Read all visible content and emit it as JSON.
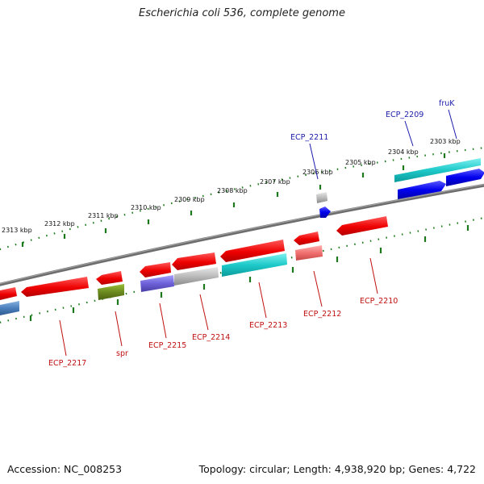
{
  "title": "Escherichia coli 536, complete genome",
  "footer": {
    "accession": "Accession: NC_008253",
    "topology": "Topology: circular; Length: 4,938,920 bp; Genes: 4,722"
  },
  "colors": {
    "backbone": "#7a7a7a",
    "tick": "#1c7a1c",
    "label_top": "#1c1caa",
    "label_bottom": "#c01010"
  },
  "kbp_labels": [
    "2303 kbp",
    "2304 kbp",
    "2305 kbp",
    "2306 kbp",
    "2307 kbp",
    "2308 kbp",
    "2309 kbp",
    "2310 kbp",
    "2311 kbp",
    "2312 kbp",
    "2313 kbp"
  ],
  "genes_top": [
    {
      "name": "fruK"
    },
    {
      "name": "ECP_2209"
    },
    {
      "name": "ECP_2211"
    }
  ],
  "genes_bottom": [
    {
      "name": "ECP_2210"
    },
    {
      "name": "ECP_2212"
    },
    {
      "name": "ECP_2213"
    },
    {
      "name": "ECP_2214"
    },
    {
      "name": "ECP_2215"
    },
    {
      "name": "spr"
    },
    {
      "name": "ECP_2217"
    }
  ]
}
